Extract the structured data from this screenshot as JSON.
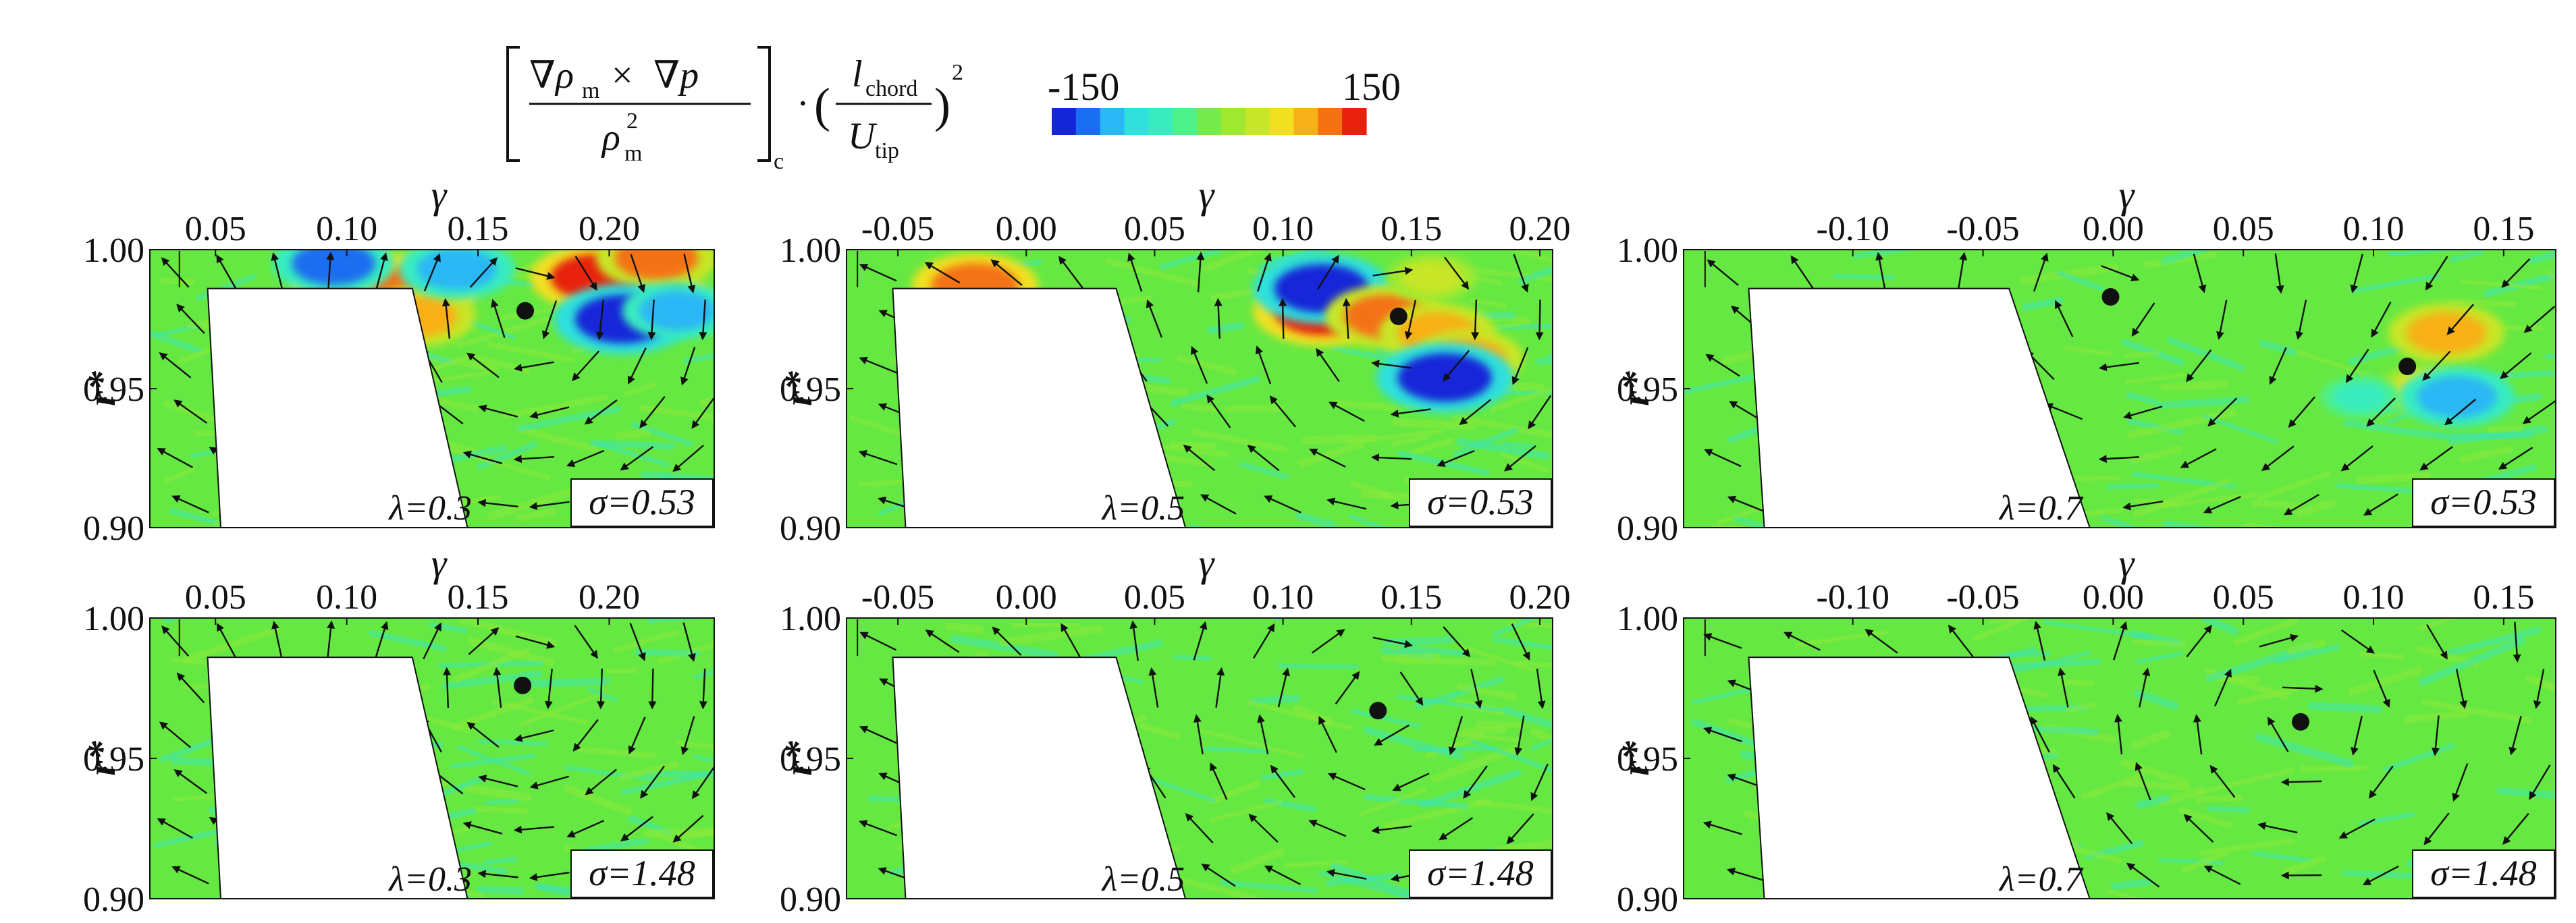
{
  "chart_data": {
    "type": "heatmap",
    "colorbar": {
      "expression": {
        "numerator_left": "∇ρ",
        "numerator_left_sub": "m",
        "times": "×",
        "numerator_right": "∇p",
        "denominator": "ρ",
        "denominator_sub": "m",
        "denominator_sup": "2",
        "bracket_sub": "c",
        "dot": "·",
        "ratio_num": "l",
        "ratio_num_sub": "chord",
        "ratio_den": "U",
        "ratio_den_sub": "tip",
        "ratio_sup": "2"
      },
      "min": -150,
      "max": 150,
      "min_label": "-150",
      "max_label": "150",
      "colors": [
        "#1426d8",
        "#1a6ef0",
        "#2ab7f5",
        "#2fe0dc",
        "#39ecc0",
        "#4ef08a",
        "#76ea4a",
        "#9ee832",
        "#c8e628",
        "#f0e020",
        "#f8b018",
        "#f47214",
        "#e8200e"
      ]
    },
    "panels": [
      {
        "row": 1,
        "col": 1,
        "xlabel": "γ",
        "ylabel": "r*",
        "x_ticks": [
          "0.05",
          "0.10",
          "0.15",
          "0.20"
        ],
        "x_tick_values": [
          0.05,
          0.1,
          0.15,
          0.2
        ],
        "xlim": [
          0.025,
          0.24
        ],
        "y_ticks": [
          "1.00",
          "0.95",
          "0.90"
        ],
        "y_tick_values": [
          1.0,
          0.95,
          0.9
        ],
        "ylim": [
          0.9,
          1.0
        ],
        "lambda": "λ=0.3",
        "sigma": "σ=0.53",
        "vortex_center": {
          "x": 0.168,
          "y": 0.978
        },
        "blade": {
          "x_left": 0.047,
          "x_right": 0.125,
          "y_top": 0.986,
          "x_bottom_left": 0.052,
          "x_bottom_right": 0.146
        },
        "hotspots": [
          {
            "x": 0.105,
            "y": 0.987,
            "value": 150
          },
          {
            "x": 0.126,
            "y": 0.986,
            "value": 130
          },
          {
            "x": 0.127,
            "y": 0.976,
            "value": 110
          },
          {
            "x": 0.095,
            "y": 0.995,
            "value": -120
          },
          {
            "x": 0.142,
            "y": 0.993,
            "value": -110
          },
          {
            "x": 0.2,
            "y": 0.992,
            "value": -130
          },
          {
            "x": 0.212,
            "y": 0.983,
            "value": 150
          },
          {
            "x": 0.195,
            "y": 0.99,
            "value": 140
          },
          {
            "x": 0.218,
            "y": 0.997,
            "value": 120
          },
          {
            "x": 0.205,
            "y": 0.975,
            "value": -150
          },
          {
            "x": 0.226,
            "y": 0.978,
            "value": -100
          }
        ]
      },
      {
        "row": 1,
        "col": 2,
        "xlabel": "γ",
        "ylabel": "r*",
        "x_ticks": [
          "-0.05",
          "0.00",
          "0.05",
          "0.10",
          "0.15",
          "0.20"
        ],
        "x_tick_values": [
          -0.05,
          0.0,
          0.05,
          0.1,
          0.15,
          0.2
        ],
        "xlim": [
          -0.07,
          0.205
        ],
        "y_ticks": [
          "1.00",
          "0.95",
          "0.90"
        ],
        "y_tick_values": [
          1.0,
          0.95,
          0.9
        ],
        "ylim": [
          0.9,
          1.0
        ],
        "lambda": "λ=0.5",
        "sigma": "σ=0.53",
        "vortex_center": {
          "x": 0.145,
          "y": 0.976
        },
        "blade": {
          "x_left": -0.052,
          "x_right": 0.035,
          "y_top": 0.986,
          "x_bottom_left": -0.047,
          "x_bottom_right": 0.062
        },
        "hotspots": [
          {
            "x": -0.02,
            "y": 0.987,
            "value": 130
          },
          {
            "x": 0.115,
            "y": 0.978,
            "value": 150
          },
          {
            "x": 0.115,
            "y": 0.986,
            "value": -150
          },
          {
            "x": 0.14,
            "y": 0.976,
            "value": 120
          },
          {
            "x": 0.16,
            "y": 0.97,
            "value": 110
          },
          {
            "x": 0.172,
            "y": 0.961,
            "value": 100
          },
          {
            "x": 0.163,
            "y": 0.954,
            "value": -150
          },
          {
            "x": 0.158,
            "y": 0.99,
            "value": 60
          }
        ]
      },
      {
        "row": 1,
        "col": 3,
        "xlabel": "γ",
        "ylabel": "r*",
        "x_ticks": [
          "-0.10",
          "-0.05",
          "0.00",
          "0.05",
          "0.10",
          "0.15"
        ],
        "x_tick_values": [
          -0.1,
          -0.05,
          0.0,
          0.05,
          0.1,
          0.15
        ],
        "xlim": [
          -0.165,
          0.17
        ],
        "y_ticks": [
          "1.00",
          "0.95",
          "0.90"
        ],
        "y_tick_values": [
          1.0,
          0.95,
          0.9
        ],
        "ylim": [
          0.9,
          1.0
        ],
        "lambda": "λ=0.7",
        "sigma": "σ=0.53",
        "vortex_center": {
          "x": -0.001,
          "y": 0.983
        },
        "second_center": {
          "x": 0.113,
          "y": 0.958
        },
        "blade": {
          "x_left": -0.14,
          "x_right": -0.04,
          "y_top": 0.986,
          "x_bottom_left": -0.134,
          "x_bottom_right": -0.009
        },
        "hotspots": [
          {
            "x": 0.128,
            "y": 0.97,
            "value": 110
          },
          {
            "x": 0.12,
            "y": 0.95,
            "value": 70
          },
          {
            "x": 0.132,
            "y": 0.947,
            "value": -110
          },
          {
            "x": 0.095,
            "y": 0.947,
            "value": -40
          }
        ]
      },
      {
        "row": 2,
        "col": 1,
        "xlabel": "γ",
        "ylabel": "r*",
        "x_ticks": [
          "0.05",
          "0.10",
          "0.15",
          "0.20"
        ],
        "x_tick_values": [
          0.05,
          0.1,
          0.15,
          0.2
        ],
        "xlim": [
          0.025,
          0.24
        ],
        "y_ticks": [
          "1.00",
          "0.95",
          "0.90"
        ],
        "y_tick_values": [
          1.0,
          0.95,
          0.9
        ],
        "ylim": [
          0.9,
          1.0
        ],
        "lambda": "λ=0.3",
        "sigma": "σ=1.48",
        "vortex_center": {
          "x": 0.167,
          "y": 0.976
        },
        "blade": {
          "x_left": 0.047,
          "x_right": 0.125,
          "y_top": 0.986,
          "x_bottom_left": 0.052,
          "x_bottom_right": 0.146
        },
        "hotspots": []
      },
      {
        "row": 2,
        "col": 2,
        "xlabel": "γ",
        "ylabel": "r*",
        "x_ticks": [
          "-0.05",
          "0.00",
          "0.05",
          "0.10",
          "0.15",
          "0.20"
        ],
        "x_tick_values": [
          -0.05,
          0.0,
          0.05,
          0.1,
          0.15,
          0.2
        ],
        "xlim": [
          -0.07,
          0.205
        ],
        "y_ticks": [
          "1.00",
          "0.95",
          "0.90"
        ],
        "y_tick_values": [
          1.0,
          0.95,
          0.9
        ],
        "ylim": [
          0.9,
          1.0
        ],
        "lambda": "λ=0.5",
        "sigma": "σ=1.48",
        "vortex_center": {
          "x": 0.137,
          "y": 0.967
        },
        "blade": {
          "x_left": -0.052,
          "x_right": 0.035,
          "y_top": 0.986,
          "x_bottom_left": -0.047,
          "x_bottom_right": 0.062
        },
        "hotspots": []
      },
      {
        "row": 2,
        "col": 3,
        "xlabel": "γ",
        "ylabel": "r*",
        "x_ticks": [
          "-0.10",
          "-0.05",
          "0.00",
          "0.05",
          "0.10",
          "0.15"
        ],
        "x_tick_values": [
          -0.1,
          -0.05,
          0.0,
          0.05,
          0.1,
          0.15
        ],
        "xlim": [
          -0.165,
          0.17
        ],
        "y_ticks": [
          "1.00",
          "0.95",
          "0.90"
        ],
        "y_tick_values": [
          1.0,
          0.95,
          0.9
        ],
        "ylim": [
          0.9,
          1.0
        ],
        "lambda": "λ=0.7",
        "sigma": "σ=1.48",
        "vortex_center": {
          "x": 0.072,
          "y": 0.963
        },
        "blade": {
          "x_left": -0.14,
          "x_right": -0.04,
          "y_top": 0.986,
          "x_bottom_left": -0.134,
          "x_bottom_right": -0.009
        },
        "hotspots": []
      }
    ]
  }
}
